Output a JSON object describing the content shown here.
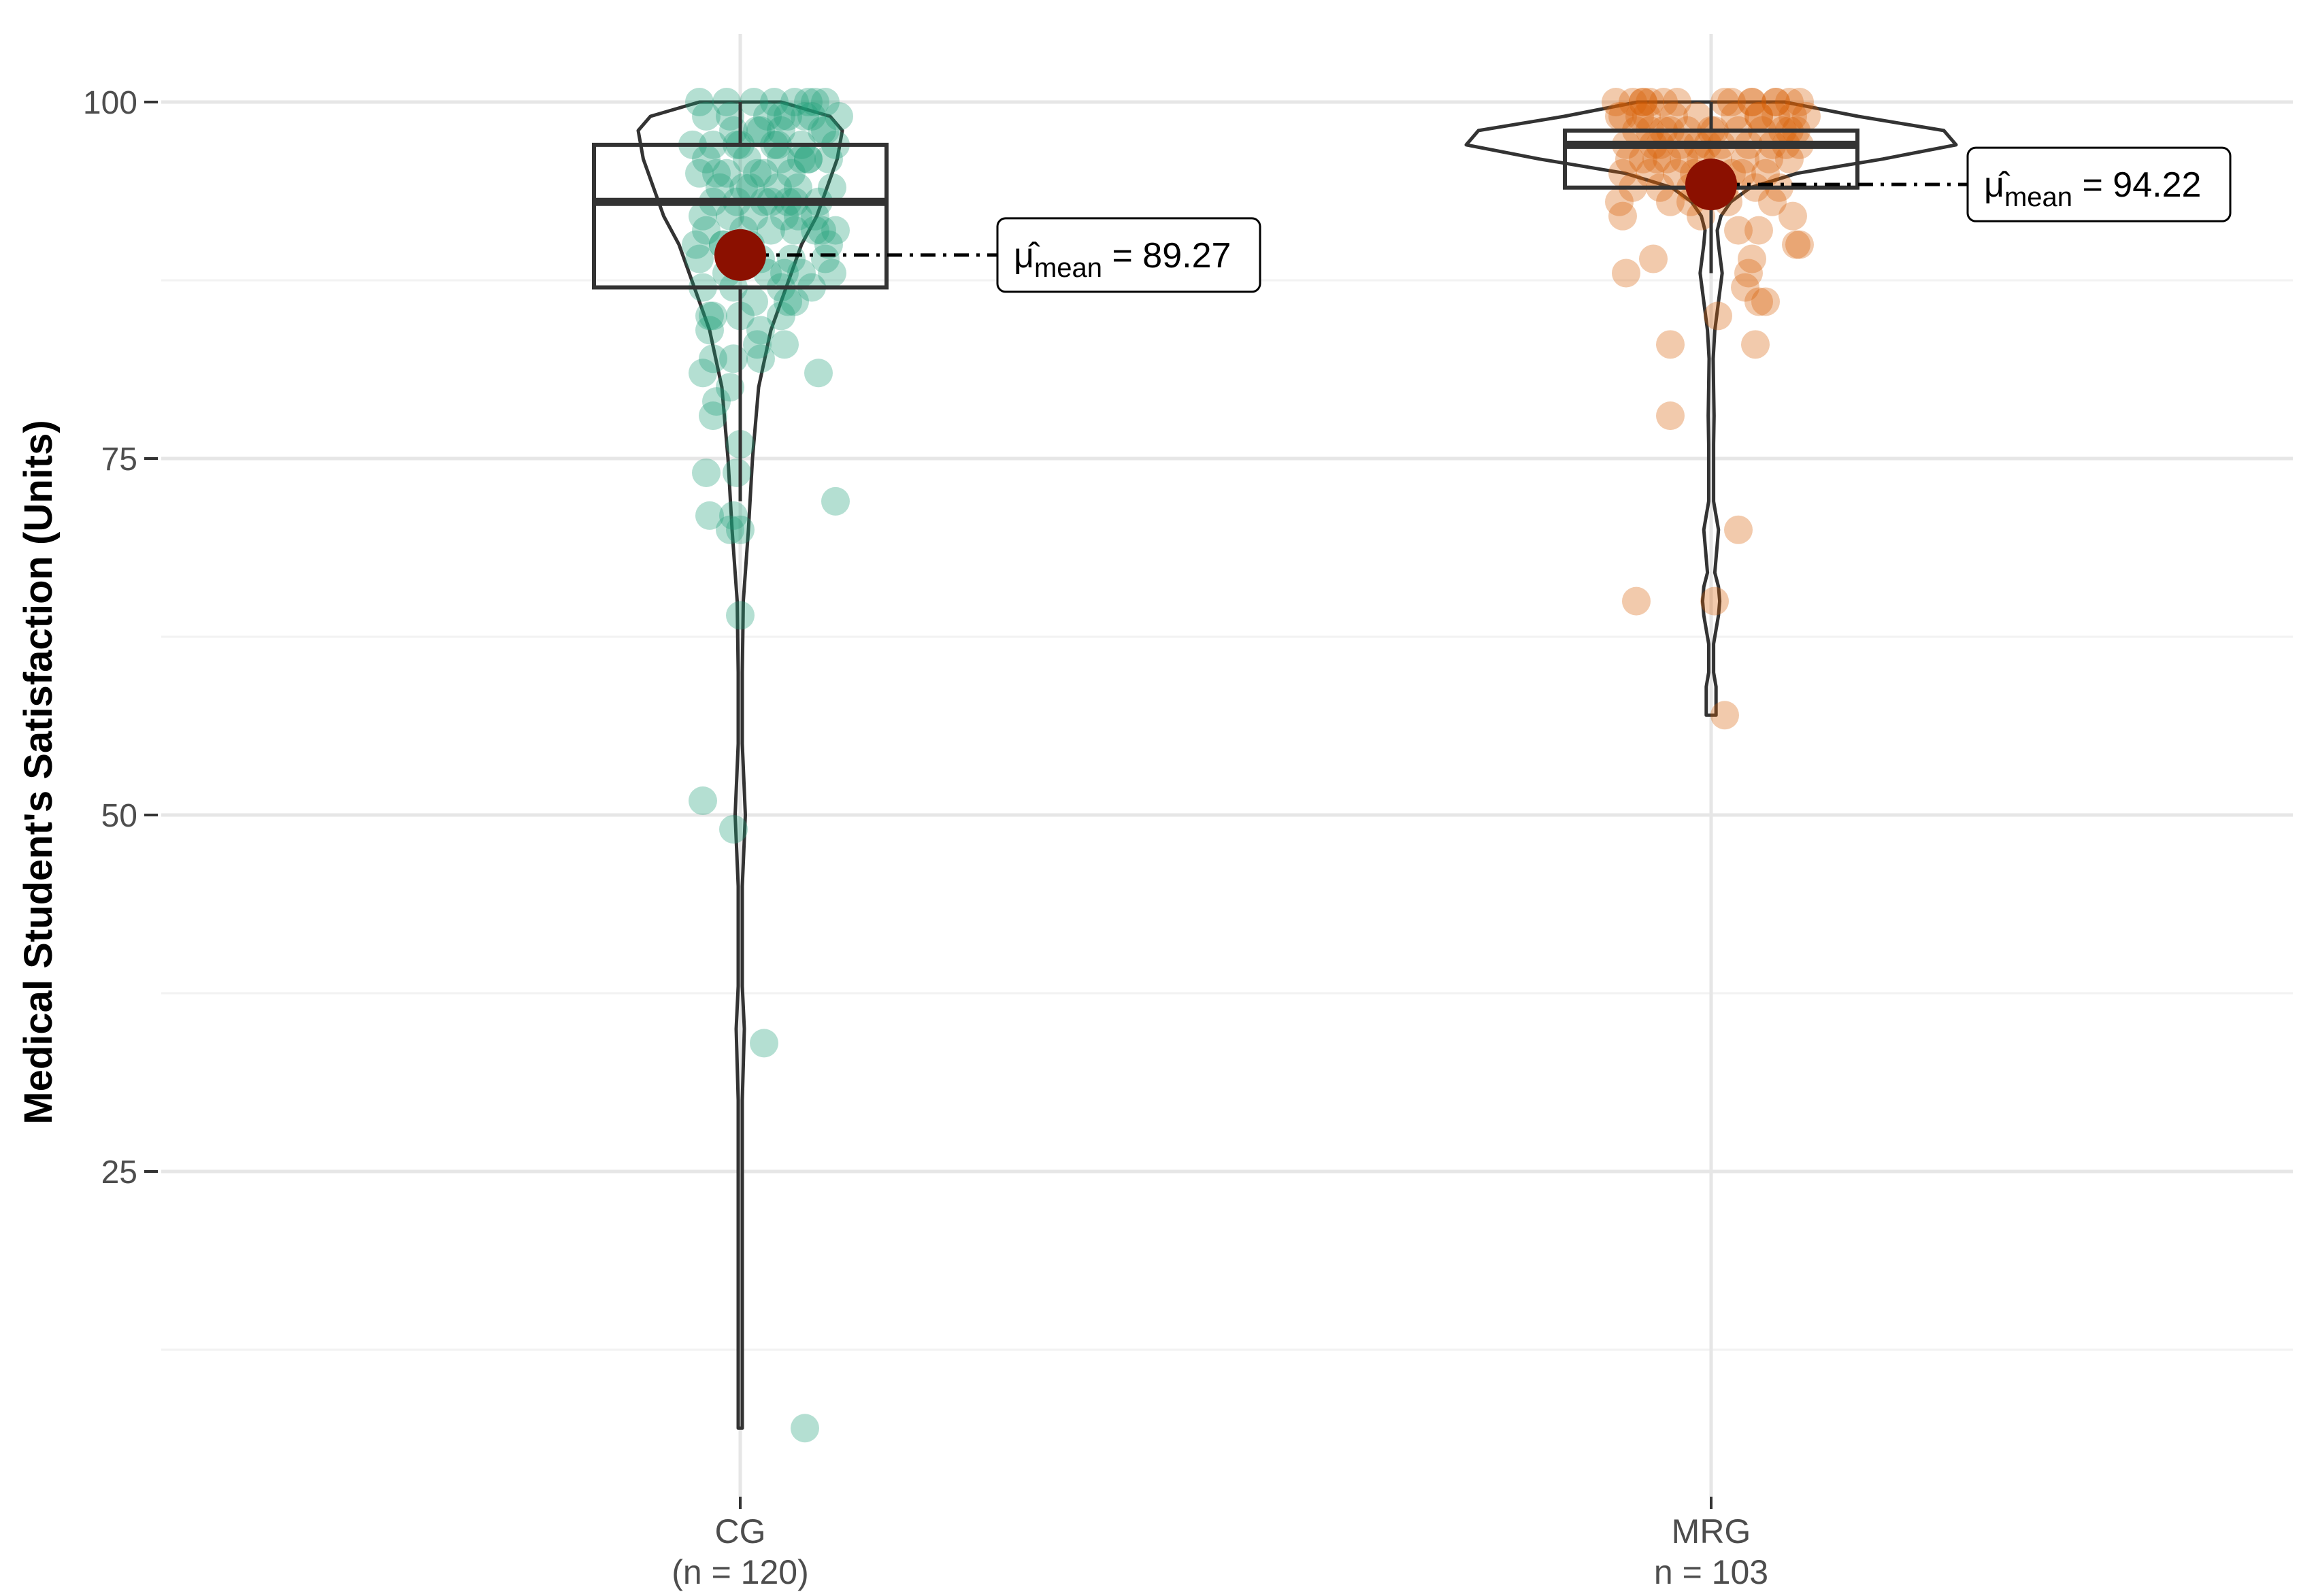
{
  "chart_data": {
    "type": "box-violin-scatter",
    "ylabel": "Medical Student's Satisfaction (Units)",
    "xlabel": "",
    "ylim": [
      2,
      103.5
    ],
    "yticks": [
      25,
      50,
      75,
      100
    ],
    "grid": true,
    "colors": {
      "CG": "#1B9E77",
      "MRG": "#D95F02",
      "mean_point": "#8B1000",
      "box": "#333333",
      "grid_major": "#e6e6e6",
      "grid_minor": "#f2f2f2"
    },
    "groups": [
      {
        "name": "CG",
        "n_label": "(n = 120)",
        "n": 120,
        "mean": 89.27,
        "mean_label": "89.27",
        "box": {
          "lower_whisker": 72,
          "q1": 87,
          "median": 93,
          "q3": 97,
          "upper_whisker": 100
        },
        "violin": {
          "y": [
            7,
            10,
            15,
            20,
            25,
            30,
            35,
            38,
            45,
            50,
            55,
            60,
            65,
            70,
            75,
            80,
            84,
            87,
            90,
            92,
            94,
            96,
            98,
            99,
            100
          ],
          "density": [
            0.02,
            0.01,
            0.01,
            0.01,
            0.01,
            0.015,
            0.04,
            0.02,
            0.02,
            0.05,
            0.02,
            0.02,
            0.03,
            0.08,
            0.12,
            0.18,
            0.3,
            0.45,
            0.6,
            0.75,
            0.85,
            0.95,
            1.0,
            0.88,
            0.4
          ]
        },
        "points": [
          100,
          100,
          100,
          100,
          100,
          100,
          100,
          100,
          99,
          99,
          99,
          99,
          99,
          99,
          98,
          98,
          98,
          98,
          98,
          97,
          97,
          97,
          97,
          97,
          97,
          96,
          96,
          96,
          96,
          96,
          95,
          95,
          95,
          95,
          94,
          94,
          94,
          94,
          94,
          93,
          93,
          93,
          93,
          93,
          92,
          92,
          92,
          92,
          92,
          91,
          91,
          91,
          91,
          91,
          90,
          90,
          90,
          90,
          89,
          89,
          89,
          89,
          88,
          88,
          88,
          88,
          87,
          87,
          87,
          86,
          86,
          85,
          85,
          85,
          85,
          84,
          84,
          83,
          83,
          82,
          82,
          82,
          81,
          81,
          80,
          79,
          78,
          76,
          74,
          74,
          72,
          71,
          71,
          70,
          70,
          64,
          51,
          49,
          34,
          7,
          99,
          98,
          97,
          96,
          95,
          94,
          93,
          92,
          91,
          90,
          89,
          88,
          87,
          86,
          95,
          97,
          93,
          91,
          99,
          96
        ],
        "jitter": [
          -60,
          -20,
          20,
          50,
          80,
          100,
          110,
          125,
          -50,
          40,
          70,
          95,
          105,
          145,
          -10,
          30,
          60,
          125,
          120,
          -70,
          -40,
          0,
          50,
          90,
          140,
          -50,
          10,
          60,
          100,
          130,
          -60,
          -20,
          25,
          75,
          -30,
          15,
          55,
          85,
          135,
          -40,
          -5,
          35,
          70,
          115,
          -55,
          -15,
          20,
          65,
          110,
          -50,
          5,
          45,
          80,
          140,
          -65,
          -25,
          15,
          130,
          -60,
          30,
          75,
          125,
          -20,
          40,
          90,
          135,
          -55,
          -10,
          60,
          20,
          80,
          -40,
          -45,
          0,
          60,
          -45,
          30,
          25,
          65,
          -40,
          -10,
          30,
          -55,
          115,
          -15,
          -35,
          -40,
          0,
          -50,
          -5,
          140,
          -45,
          -10,
          -15,
          0,
          0,
          -55,
          -10,
          35,
          95,
          -15,
          25,
          55,
          100,
          -35,
          5,
          45,
          85,
          120,
          -25,
          15,
          65,
          105,
          70,
          35,
          -5,
          80,
          110,
          60,
          90
        ]
      },
      {
        "name": "MRG",
        "n_label": "n = 103",
        "n": 103,
        "mean": 94.22,
        "mean_label": "94.22",
        "box": {
          "lower_whisker": 88,
          "q1": 94,
          "median": 97,
          "q3": 98,
          "upper_whisker": 100
        },
        "violin": {
          "y": [
            57,
            59,
            60,
            62,
            63,
            64,
            65,
            66,
            67,
            68,
            70,
            72,
            74,
            76,
            78,
            80,
            82,
            84,
            86,
            88,
            90,
            91,
            92,
            93,
            94,
            95,
            96,
            97,
            98,
            99,
            100
          ],
          "density": [
            0.02,
            0.02,
            0.01,
            0.01,
            0.02,
            0.03,
            0.035,
            0.03,
            0.015,
            0.02,
            0.03,
            0.01,
            0.01,
            0.01,
            0.012,
            0.01,
            0.008,
            0.015,
            0.03,
            0.045,
            0.03,
            0.025,
            0.04,
            0.08,
            0.16,
            0.35,
            0.7,
            1.0,
            0.95,
            0.6,
            0.3
          ]
        },
        "points": [
          100,
          100,
          100,
          100,
          100,
          100,
          100,
          100,
          100,
          100,
          100,
          99,
          99,
          99,
          99,
          99,
          99,
          99,
          99,
          99,
          98,
          98,
          98,
          98,
          98,
          98,
          98,
          98,
          98,
          97,
          97,
          97,
          97,
          97,
          97,
          97,
          97,
          96,
          96,
          96,
          96,
          96,
          96,
          96,
          95,
          95,
          95,
          95,
          95,
          95,
          94,
          94,
          94,
          94,
          94,
          94,
          93,
          93,
          93,
          93,
          92,
          92,
          92,
          91,
          91,
          90,
          90,
          89,
          89,
          88,
          88,
          87,
          86,
          86,
          85,
          83,
          83,
          78,
          70,
          65,
          65,
          57,
          100,
          100,
          99,
          98,
          97,
          96,
          95,
          94,
          100,
          99,
          98,
          97,
          96,
          95,
          94,
          93,
          100,
          99,
          98,
          97,
          96
        ],
        "jitter": [
          -140,
          -115,
          -90,
          -50,
          20,
          95,
          115,
          130,
          60,
          30,
          -100,
          -130,
          -95,
          -55,
          -20,
          35,
          70,
          95,
          120,
          -135,
          -110,
          -70,
          -35,
          0,
          40,
          75,
          105,
          125,
          -60,
          -125,
          -85,
          -45,
          15,
          55,
          90,
          110,
          130,
          -120,
          -80,
          -40,
          10,
          50,
          85,
          115,
          -130,
          -90,
          -50,
          0,
          45,
          80,
          -115,
          -75,
          -30,
          20,
          65,
          100,
          -135,
          -60,
          25,
          90,
          -130,
          -15,
          120,
          70,
          40,
          125,
          130,
          -85,
          60,
          -125,
          55,
          50,
          70,
          80,
          10,
          -60,
          65,
          -60,
          40,
          5,
          -110,
          20,
          -100,
          -70,
          -105,
          -90,
          -75,
          -65,
          -25,
          -10,
          60,
          140,
          5,
          -20,
          -100,
          30,
          5,
          -30,
          95,
          70,
          115,
          -5,
          -15
        ]
      }
    ]
  }
}
